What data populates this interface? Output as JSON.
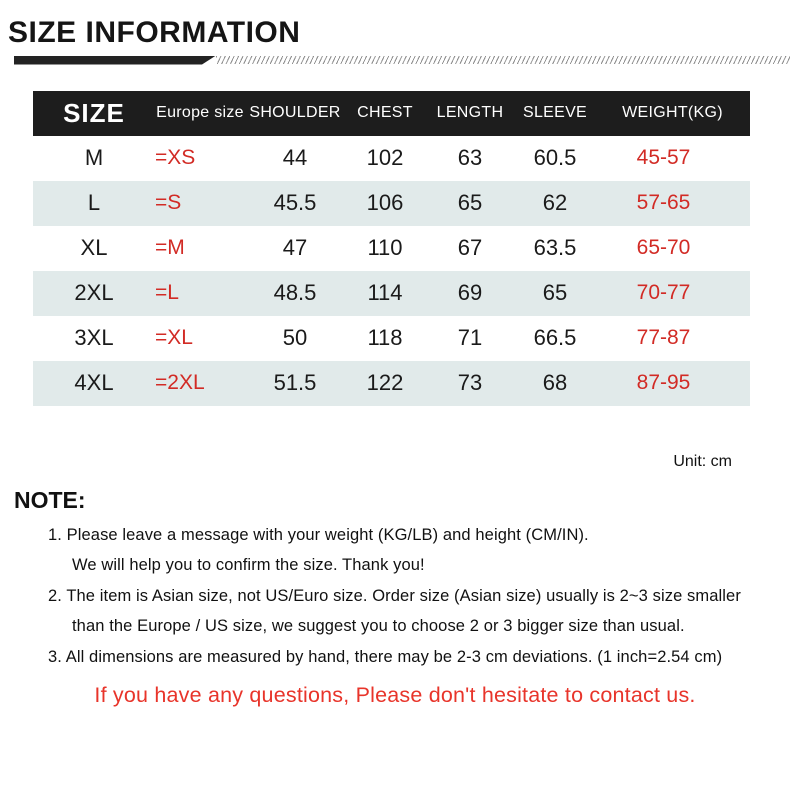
{
  "page": {
    "title": "SIZE INFORMATION",
    "unit_label": "Unit: cm",
    "note_heading": "NOTE:",
    "contact_message": "If you have any questions, Please don't hesitate to contact us."
  },
  "table": {
    "headers": [
      "SIZE",
      "Europe size",
      "SHOULDER",
      "CHEST",
      "LENGTH",
      "SLEEVE",
      "WEIGHT(KG)"
    ],
    "rows": [
      {
        "size": "M",
        "europe": "=XS",
        "shoulder": "44",
        "chest": "102",
        "length": "63",
        "sleeve": "60.5",
        "weight": "45-57"
      },
      {
        "size": "L",
        "europe": "=S",
        "shoulder": "45.5",
        "chest": "106",
        "length": "65",
        "sleeve": "62",
        "weight": "57-65"
      },
      {
        "size": "XL",
        "europe": "=M",
        "shoulder": "47",
        "chest": "110",
        "length": "67",
        "sleeve": "63.5",
        "weight": "65-70"
      },
      {
        "size": "2XL",
        "europe": "=L",
        "shoulder": "48.5",
        "chest": "114",
        "length": "69",
        "sleeve": "65",
        "weight": "70-77"
      },
      {
        "size": "3XL",
        "europe": "=XL",
        "shoulder": "50",
        "chest": "118",
        "length": "71",
        "sleeve": "66.5",
        "weight": "77-87"
      },
      {
        "size": "4XL",
        "europe": "=2XL",
        "shoulder": "51.5",
        "chest": "122",
        "length": "73",
        "sleeve": "68",
        "weight": "87-95"
      }
    ]
  },
  "notes": [
    {
      "t": "1. Please leave a message with your weight (KG/LB) and height (CM/IN)."
    },
    {
      "t": "We will help you to confirm the size. Thank you!"
    },
    {
      "t": "2. The item is Asian size, not US/Euro size. Order size (Asian size) usually is  2~3 size smaller"
    },
    {
      "t": "than the Europe / US size, we suggest you to choose 2 or 3 bigger size than usual."
    },
    {
      "t": "3. All dimensions are measured by hand, there may be 2-3 cm deviations. (1 inch=2.54 cm)"
    }
  ],
  "colors": {
    "header_bg": "#1d1d1d",
    "stripe_bg": "#e1eaea",
    "table_red": "#d22b25",
    "message_red": "#e8342a"
  }
}
